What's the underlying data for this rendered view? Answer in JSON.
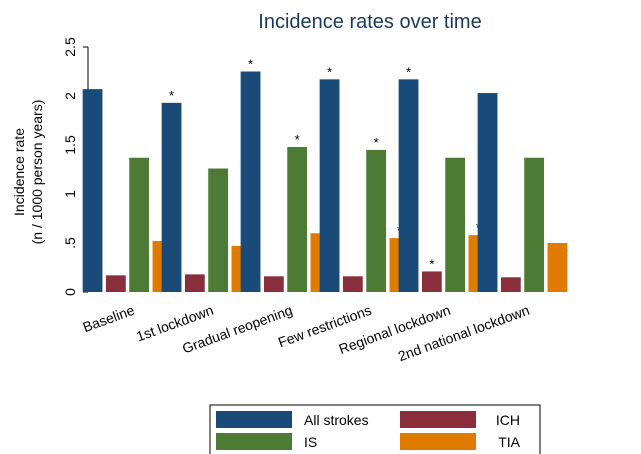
{
  "chart_data": {
    "type": "bar",
    "title": "Incidence rates over time",
    "ylabel_line1": "Incidence rate",
    "ylabel_line2": "(n / 1000 person years)",
    "xlabel": "",
    "ylim": [
      0,
      2.5
    ],
    "yticks": [
      0,
      0.5,
      1,
      1.5,
      2,
      2.5
    ],
    "ytick_labels": [
      "0",
      ".5",
      "1",
      "1.5",
      "2",
      "2.5"
    ],
    "categories": [
      "Baseline",
      "1st lockdown",
      "Gradual reopening",
      "Few restrictions",
      "Regional lockdown",
      "2nd national lockdown"
    ],
    "series": [
      {
        "name": "All strokes",
        "color": "#1a4a78",
        "values": [
          2.07,
          1.93,
          2.25,
          2.17,
          2.17,
          2.03
        ],
        "significant": [
          false,
          true,
          true,
          true,
          true,
          false
        ]
      },
      {
        "name": "ICH",
        "color": "#8b2e3c",
        "values": [
          0.17,
          0.18,
          0.16,
          0.16,
          0.21,
          0.15
        ],
        "significant": [
          false,
          false,
          false,
          false,
          true,
          false
        ]
      },
      {
        "name": "IS",
        "color": "#4d7a35",
        "values": [
          1.37,
          1.26,
          1.48,
          1.45,
          1.37,
          1.37
        ],
        "significant": [
          false,
          false,
          true,
          true,
          false,
          false
        ]
      },
      {
        "name": "TIA",
        "color": "#e07b00",
        "values": [
          0.52,
          0.47,
          0.6,
          0.55,
          0.58,
          0.5
        ],
        "significant": [
          false,
          false,
          false,
          true,
          true,
          false
        ]
      }
    ],
    "significance_marker": "*",
    "legend": {
      "placement": "bottom",
      "rows": [
        [
          "All strokes",
          "ICH"
        ],
        [
          "IS",
          "TIA"
        ]
      ]
    },
    "grid": false
  }
}
